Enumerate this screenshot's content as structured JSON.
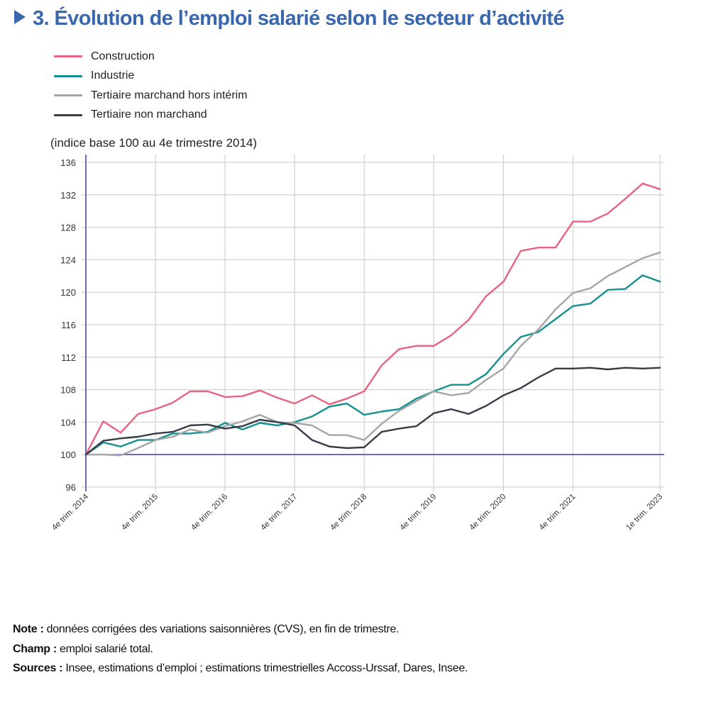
{
  "title": "3. Évolution de l’emploi salarié selon le secteur d’activité",
  "unit_label": "(indice base 100 au 4e trimestre 2014)",
  "notes": [
    {
      "label": "Note :",
      "text": " données corrigées des variations saisonnières (CVS), en fin de trimestre."
    },
    {
      "label": "Champ :",
      "text": "  emploi salarié total."
    },
    {
      "label": "Sources :",
      "text": " Insee, estimations d’emploi ; estimations trimestrielles Accoss-Urssaf, Dares, Insee."
    }
  ],
  "chart_data": {
    "type": "line",
    "title": "3. Évolution de l’emploi salarié selon le secteur d’activité",
    "xlabel": "",
    "ylabel": "(indice base 100 au 4e trimestre 2014)",
    "ylim": [
      96,
      136
    ],
    "yticks": [
      96,
      100,
      104,
      108,
      112,
      116,
      120,
      124,
      128,
      132,
      136
    ],
    "grid": true,
    "legend_position": "top-left",
    "reference_line": 100,
    "x": [
      "2014T4",
      "2015T1",
      "2015T2",
      "2015T3",
      "2015T4",
      "2016T1",
      "2016T2",
      "2016T3",
      "2016T4",
      "2017T1",
      "2017T2",
      "2017T3",
      "2017T4",
      "2018T1",
      "2018T2",
      "2018T3",
      "2018T4",
      "2019T1",
      "2019T2",
      "2019T3",
      "2019T4",
      "2020T1",
      "2020T2",
      "2020T3",
      "2020T4",
      "2021T1",
      "2021T2",
      "2021T3",
      "2021T4",
      "2022T1",
      "2022T2",
      "2022T3",
      "2022T4",
      "2023T1"
    ],
    "xticks": [
      {
        "index": 0,
        "label": "4e trim. 2014"
      },
      {
        "index": 4,
        "label": "4e trim. 2015"
      },
      {
        "index": 8,
        "label": "4e trim. 2016"
      },
      {
        "index": 12,
        "label": "4e trim. 2017"
      },
      {
        "index": 16,
        "label": "4e trim. 2018"
      },
      {
        "index": 20,
        "label": "4e trim. 2019"
      },
      {
        "index": 24,
        "label": "4e trim. 2020"
      },
      {
        "index": 28,
        "label": "4e trim. 2021"
      },
      {
        "index": 33,
        "label": "1e trim. 2023"
      }
    ],
    "series": [
      {
        "name": "Construction",
        "color": "#e8637f",
        "values": [
          100,
          104.1,
          102.7,
          105.0,
          105.6,
          106.4,
          107.8,
          107.8,
          107.1,
          107.2,
          107.9,
          107.0,
          106.3,
          107.3,
          106.2,
          106.9,
          107.8,
          111.0,
          113.0,
          113.4,
          113.4,
          114.7,
          116.6,
          119.5,
          121.3,
          125.1,
          125.5,
          125.5,
          128.7,
          128.7,
          129.7,
          131.5,
          133.4,
          132.7
        ]
      },
      {
        "name": "Industrie",
        "color": "#14918f",
        "values": [
          100,
          101.5,
          101.0,
          101.8,
          101.8,
          102.6,
          102.6,
          102.8,
          103.9,
          103.1,
          103.9,
          103.6,
          104.0,
          104.7,
          105.9,
          106.3,
          104.9,
          105.3,
          105.6,
          106.9,
          107.8,
          108.6,
          108.6,
          109.9,
          112.4,
          114.5,
          115.1,
          116.7,
          118.3,
          118.6,
          120.3,
          120.4,
          122.1,
          121.3
        ]
      },
      {
        "name": "Tertiaire marchand hors intérim",
        "color": "#a5a5a5",
        "values": [
          100,
          100,
          99.9,
          100.8,
          101.8,
          102.2,
          103.1,
          102.7,
          103.5,
          104.1,
          104.9,
          104.0,
          103.9,
          103.6,
          102.4,
          102.4,
          101.8,
          103.8,
          105.4,
          106.6,
          107.8,
          107.3,
          107.6,
          109.2,
          110.6,
          113.4,
          115.4,
          117.9,
          119.9,
          120.5,
          122.0,
          123.1,
          124.2,
          124.9
        ]
      },
      {
        "name": "Tertiaire non marchand",
        "color": "#353c48",
        "values": [
          100,
          101.7,
          102.0,
          102.2,
          102.6,
          102.8,
          103.6,
          103.7,
          103.2,
          103.5,
          104.3,
          104.0,
          103.6,
          101.8,
          101.0,
          100.8,
          100.9,
          102.8,
          103.2,
          103.5,
          105.1,
          105.6,
          105.0,
          106.0,
          107.3,
          108.2,
          109.5,
          110.6,
          110.6,
          110.7,
          110.5,
          110.7,
          110.6,
          110.7
        ]
      }
    ]
  }
}
